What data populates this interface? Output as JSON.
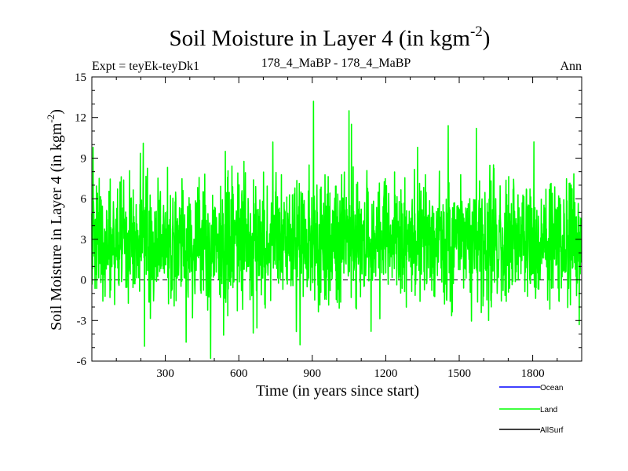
{
  "chart_data": {
    "type": "line",
    "title_main": "Soil Moisture in Layer 4 (in kgm",
    "title_sup": "-2",
    "title_close": ")",
    "expt_label": "Expt = teyEk-teyDk1",
    "subtitle": "178_4_MaBP - 178_4_MaBP",
    "season": "Ann",
    "xlabel": "Time (in years since start)",
    "ylabel_main": "Soil Moisture in Layer 4 (in kgm",
    "ylabel_sup": "-2",
    "ylabel_close": ")",
    "xlim": [
      0,
      2000
    ],
    "ylim": [
      -6,
      15
    ],
    "xticks": [
      300,
      600,
      900,
      1200,
      1500,
      1800
    ],
    "xtick_labels": [
      "300",
      "600",
      "900",
      "1200",
      "1500",
      "1800"
    ],
    "yticks": [
      -6,
      -3,
      0,
      3,
      6,
      9,
      12,
      15
    ],
    "ytick_labels": [
      "-6",
      "-3",
      "0",
      "3",
      "6",
      "9",
      "12",
      "15"
    ],
    "reference_line": 0,
    "series": [
      {
        "name": "Ocean",
        "color": "#0000ff",
        "values": []
      },
      {
        "name": "Land",
        "color": "#00ff00",
        "n_points": 2000,
        "mean": 2.8,
        "std": 2.3,
        "min": -5.8,
        "max": 13.2,
        "spikes": [
          [
            5,
            9.8
          ],
          [
            210,
            10.1
          ],
          [
            215,
            -4.9
          ],
          [
            385,
            -4.6
          ],
          [
            485,
            -5.8
          ],
          [
            545,
            9.5
          ],
          [
            905,
            13.2
          ],
          [
            1050,
            12.5
          ],
          [
            1060,
            11.5
          ],
          [
            1455,
            11.4
          ],
          [
            1570,
            11.2
          ],
          [
            1805,
            10.2
          ],
          [
            850,
            -4.8
          ],
          [
            1990,
            -3.3
          ],
          [
            1330,
            9.8
          ],
          [
            1140,
            -3.8
          ]
        ]
      },
      {
        "name": "AllSurf",
        "color": "#000000",
        "values": []
      }
    ],
    "legend": [
      {
        "label": "Ocean",
        "color": "#0000ff"
      },
      {
        "label": "Land",
        "color": "#00ff00"
      },
      {
        "label": "AllSurf",
        "color": "#000000"
      }
    ]
  }
}
